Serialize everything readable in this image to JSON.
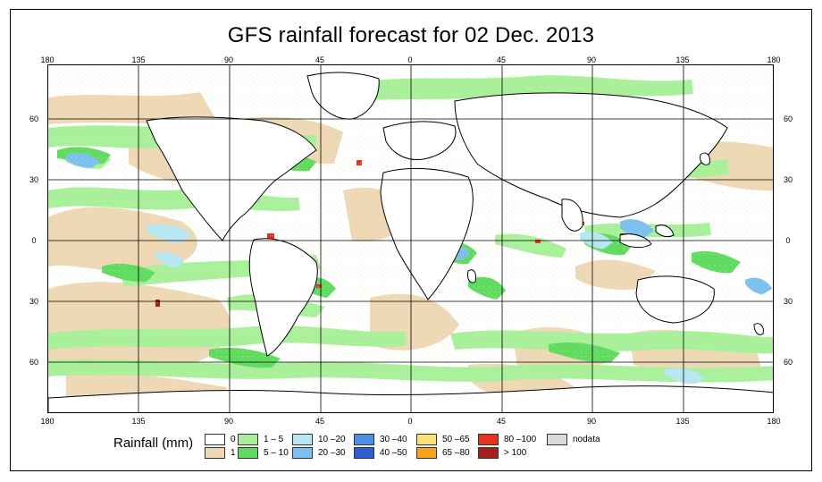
{
  "title": "GFS rainfall forecast for 02 Dec. 2013",
  "axes": {
    "top_labels": [
      "180",
      "135",
      "90",
      "45",
      "0",
      "45",
      "90",
      "135",
      "180"
    ],
    "bottom_labels": [
      "180",
      "135",
      "90",
      "45",
      "0",
      "45",
      "90",
      "135",
      "180"
    ],
    "left_labels": [
      "60",
      "30",
      "0",
      "30",
      "60"
    ],
    "right_labels": [
      "60",
      "30",
      "0",
      "30",
      "60"
    ]
  },
  "legend": {
    "title": "Rainfall (mm)",
    "items": [
      {
        "label": "0",
        "color": "#ffffff"
      },
      {
        "label": "1",
        "color": "#eed8b5"
      },
      {
        "label": "1 – 5",
        "color": "#a8f09a"
      },
      {
        "label": "5 – 10",
        "color": "#5fdc5f"
      },
      {
        "label": "10 –20",
        "color": "#b7e7f3"
      },
      {
        "label": "20 –30",
        "color": "#7cc0f0"
      },
      {
        "label": "30 –40",
        "color": "#4a8fe8"
      },
      {
        "label": "40 –50",
        "color": "#2a5fd8"
      },
      {
        "label": "50 –65",
        "color": "#fbe178"
      },
      {
        "label": "65 –80",
        "color": "#f7a21b"
      },
      {
        "label": "80 –100",
        "color": "#e8321e"
      },
      {
        "label": "> 100",
        "color": "#a81e1e"
      },
      {
        "label": "nodata",
        "color": "#d9d9d9"
      }
    ]
  },
  "colors": {
    "tan": "#eed8b5",
    "light_green": "#a8f09a",
    "green": "#5fdc5f",
    "light_blue": "#b7e7f3",
    "blue": "#7cc0f0",
    "red": "#e8321e",
    "dark_red": "#a81e1e"
  }
}
